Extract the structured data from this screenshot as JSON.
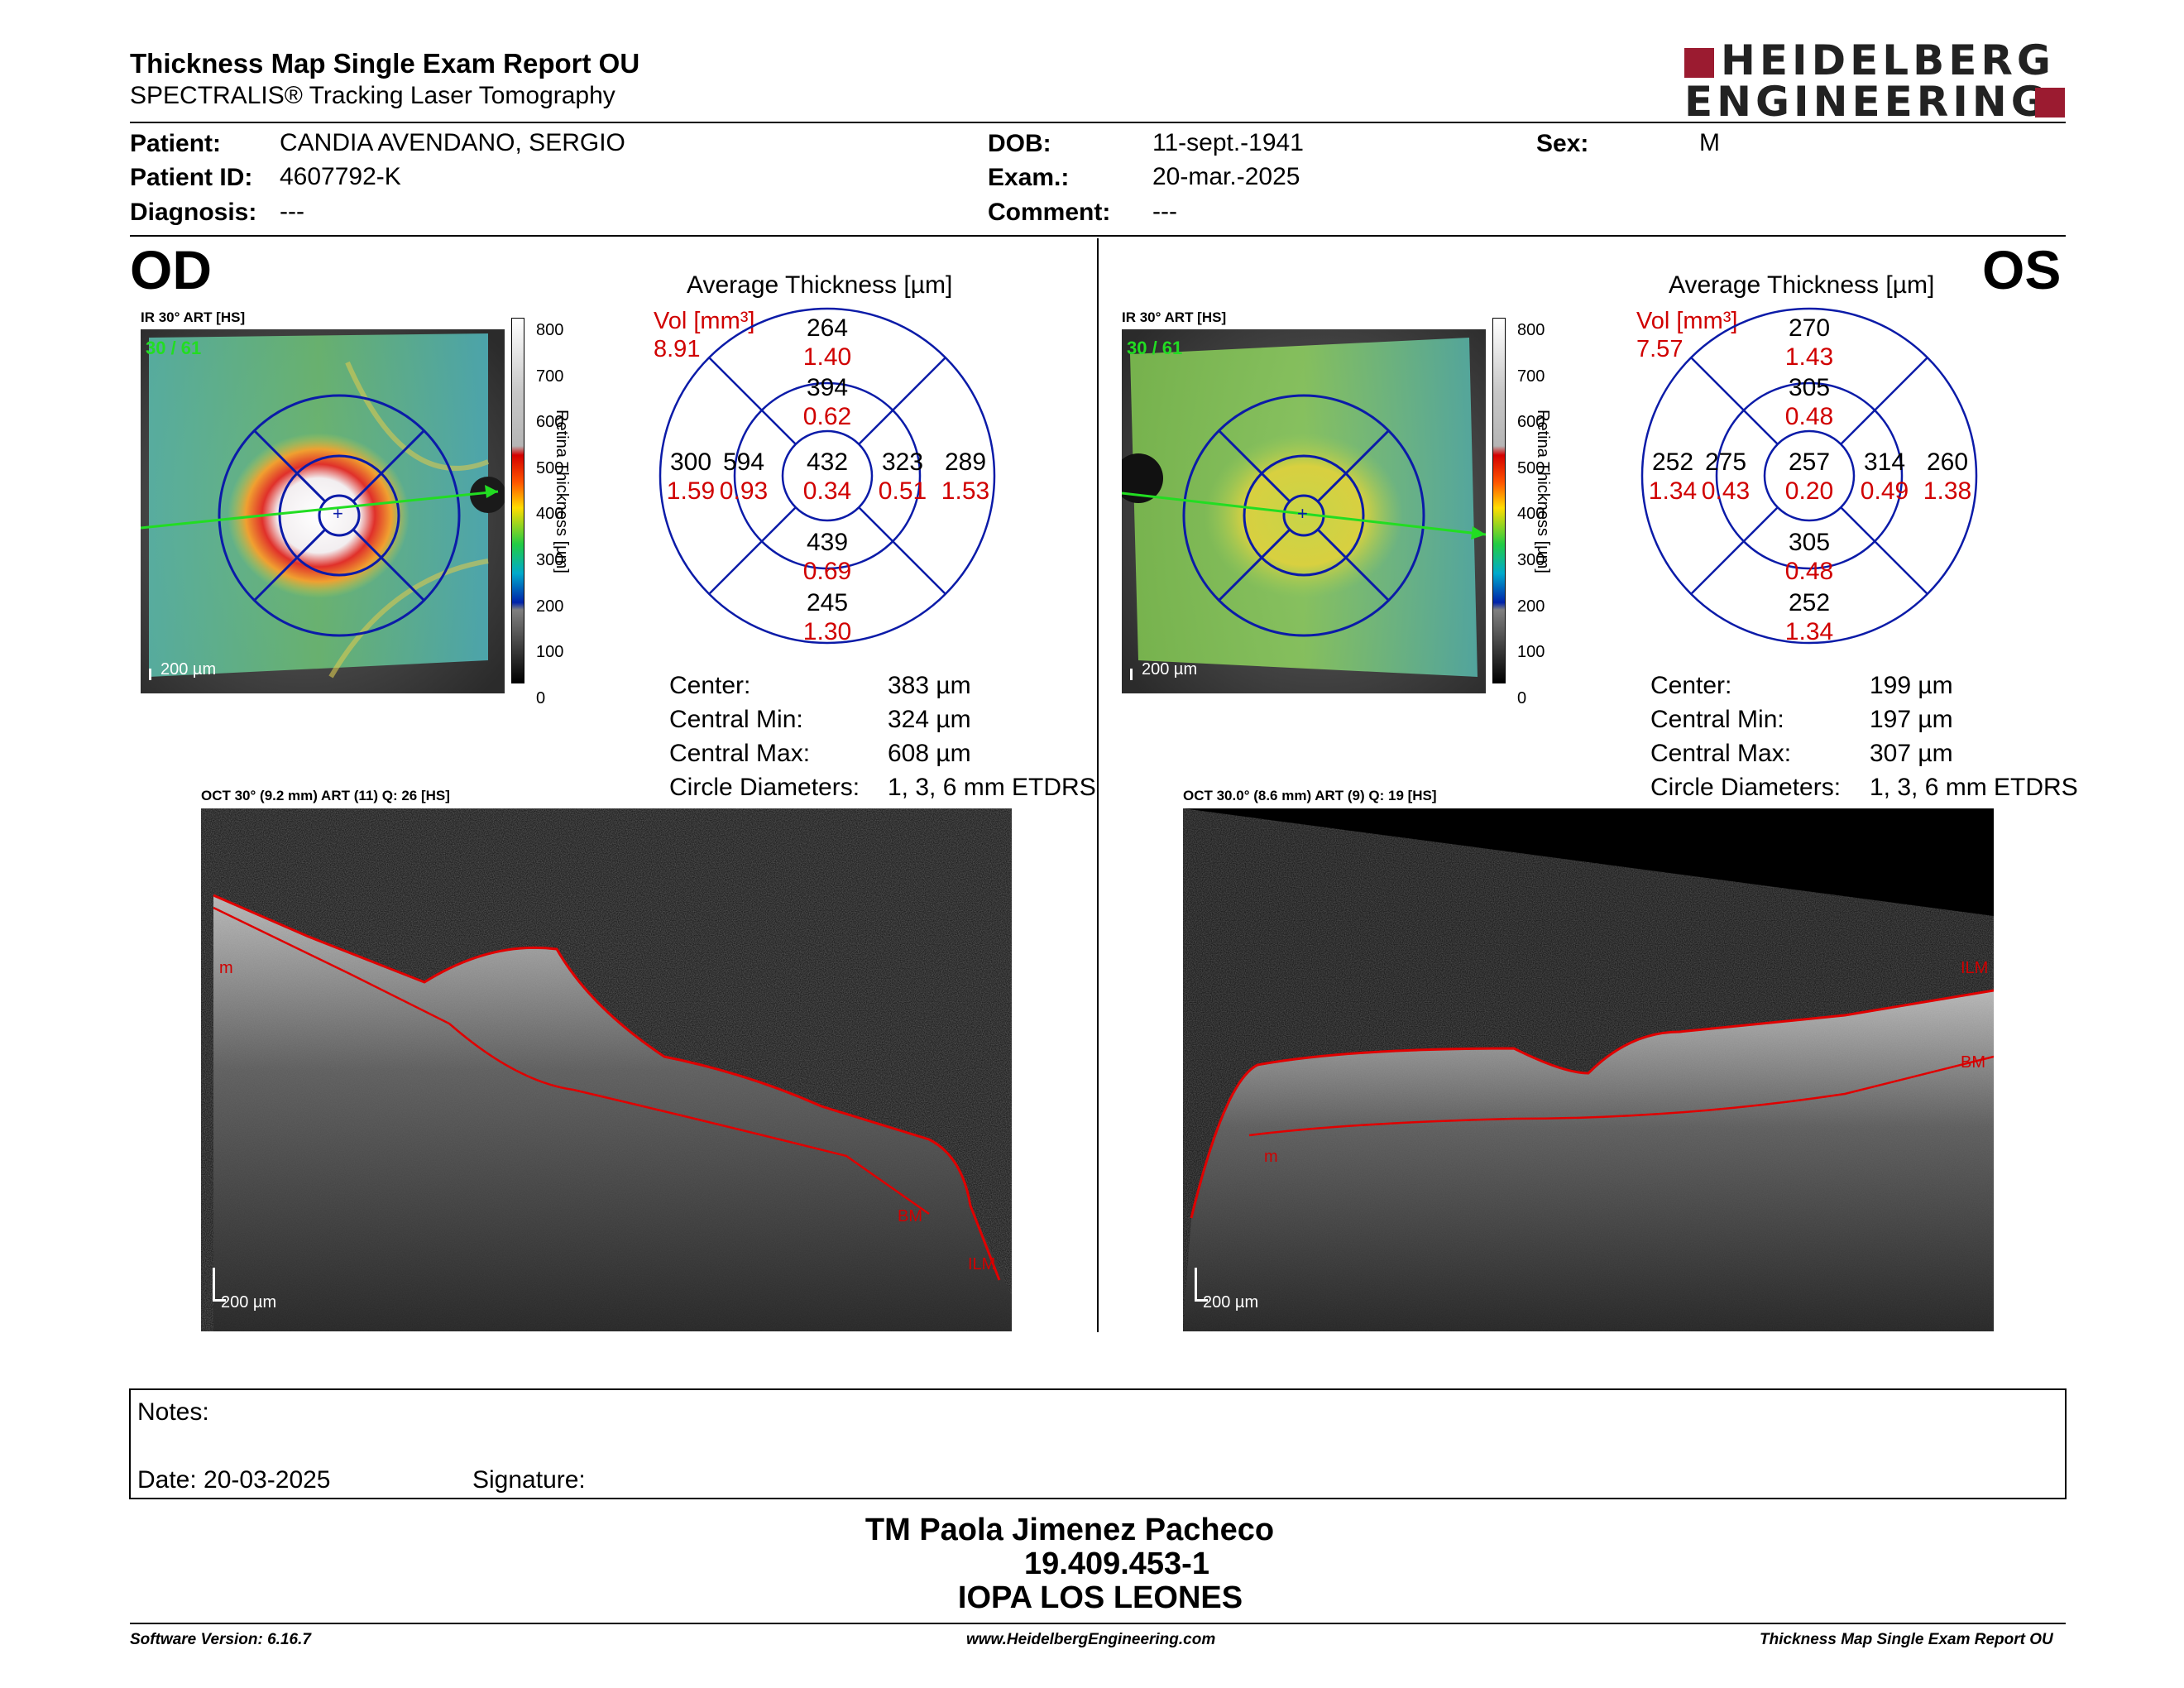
{
  "header": {
    "title": "Thickness Map Single Exam Report OU",
    "subtitle": "SPECTRALIS® Tracking Laser Tomography",
    "logo_line1": "HEIDELBERG",
    "logo_line2": "ENGINEERING"
  },
  "patient": {
    "patient_label": "Patient:",
    "patient_value": "CANDIA AVENDANO, SERGIO",
    "id_label": "Patient ID:",
    "id_value": "4607792-K",
    "diag_label": "Diagnosis:",
    "diag_value": "---",
    "dob_label": "DOB:",
    "dob_value": "11-sept.-1941",
    "exam_label": "Exam.:",
    "exam_value": "20-mar.-2025",
    "comment_label": "Comment:",
    "comment_value": "---",
    "sex_label": "Sex:",
    "sex_value": "M"
  },
  "colorbar": {
    "ticks": [
      "800",
      "700",
      "600",
      "500",
      "400",
      "300",
      "200",
      "100",
      "0"
    ],
    "label": "Retina Thickness [µm]"
  },
  "od": {
    "eye": "OD",
    "ir_label": "IR 30° ART [HS]",
    "ir_count": "30 / 61",
    "scale": "200 µm",
    "avg_title": "Average Thickness [µm]",
    "vol_label": "Vol [mm³]",
    "vol_total": "8.91",
    "grid": {
      "outer_sup": [
        "264",
        "1.40"
      ],
      "inner_sup": [
        "394",
        "0.62"
      ],
      "outer_tmp": [
        "300",
        "1.59"
      ],
      "inner_tmp": [
        "594",
        "0.93"
      ],
      "center": [
        "432",
        "0.34"
      ],
      "inner_nas": [
        "323",
        "0.51"
      ],
      "outer_nas": [
        "289",
        "1.53"
      ],
      "inner_inf": [
        "439",
        "0.69"
      ],
      "outer_inf": [
        "245",
        "1.30"
      ]
    },
    "stats": [
      {
        "label": "Center:",
        "value": "383 µm"
      },
      {
        "label": "Central Min:",
        "value": "324 µm"
      },
      {
        "label": "Central Max:",
        "value": "608 µm"
      },
      {
        "label": "Circle Diameters:",
        "value": "1, 3, 6 mm ETDRS"
      }
    ],
    "oct_label": "OCT 30° (9.2 mm) ART (11) Q: 26 [HS]",
    "oct_tags": [
      "m",
      "BM",
      "ILM"
    ],
    "oct_scale": "200 µm"
  },
  "os": {
    "eye": "OS",
    "ir_label": "IR 30° ART [HS]",
    "ir_count": "30 / 61",
    "scale": "200 µm",
    "avg_title": "Average Thickness [µm]",
    "vol_label": "Vol [mm³]",
    "vol_total": "7.57",
    "grid": {
      "outer_sup": [
        "270",
        "1.43"
      ],
      "inner_sup": [
        "305",
        "0.48"
      ],
      "outer_tmp": [
        "252",
        "1.34"
      ],
      "inner_tmp": [
        "275",
        "0.43"
      ],
      "center": [
        "257",
        "0.20"
      ],
      "inner_nas": [
        "314",
        "0.49"
      ],
      "outer_nas": [
        "260",
        "1.38"
      ],
      "inner_inf": [
        "305",
        "0.48"
      ],
      "outer_inf": [
        "252",
        "1.34"
      ]
    },
    "stats": [
      {
        "label": "Center:",
        "value": "199 µm"
      },
      {
        "label": "Central Min:",
        "value": "197 µm"
      },
      {
        "label": "Central Max:",
        "value": "307 µm"
      },
      {
        "label": "Circle Diameters:",
        "value": "1, 3, 6 mm ETDRS"
      }
    ],
    "oct_label": "OCT 30.0° (8.6 mm) ART (9) Q: 19 [HS]",
    "oct_tags": [
      "ILM",
      "BM",
      "m"
    ],
    "oct_scale": "200 µm"
  },
  "notes": {
    "notes_label": "Notes:",
    "date_label": "Date: 20-03-2025",
    "signature_label": "Signature:"
  },
  "signature": {
    "name": "TM Paola Jimenez Pacheco",
    "id": "19.409.453-1",
    "org": "IOPA LOS LEONES"
  },
  "footer": {
    "left": "Software Version: 6.16.7",
    "center": "www.HeidelbergEngineering.com",
    "right": "Thickness Map Single Exam Report OU"
  },
  "colors": {
    "accent_red": "#d00000",
    "grid_blue": "#0b1ba8",
    "logo_red": "#9b1b30"
  }
}
